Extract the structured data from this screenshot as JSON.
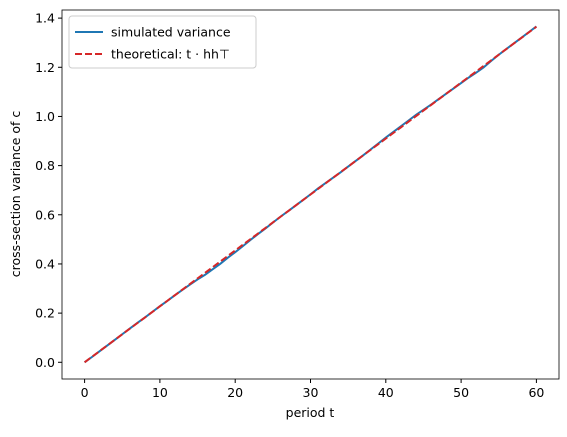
{
  "chart_data": {
    "type": "line",
    "xlabel": "period t",
    "ylabel": "cross-section variance of c",
    "x": [
      0,
      1,
      2,
      3,
      4,
      5,
      6,
      7,
      8,
      9,
      10,
      11,
      12,
      13,
      14,
      15,
      16,
      17,
      18,
      19,
      20,
      21,
      22,
      23,
      24,
      25,
      26,
      27,
      28,
      29,
      30,
      31,
      32,
      33,
      34,
      35,
      36,
      37,
      38,
      39,
      40,
      41,
      42,
      43,
      44,
      45,
      46,
      47,
      48,
      49,
      50,
      51,
      52,
      53,
      54,
      55,
      56,
      57,
      58,
      59,
      60
    ],
    "series": [
      {
        "name": "simulated variance",
        "color": "#1f77b4",
        "dash": false,
        "values": [
          0,
          0.022,
          0.045,
          0.068,
          0.091,
          0.114,
          0.137,
          0.16,
          0.182,
          0.205,
          0.228,
          0.25,
          0.273,
          0.295,
          0.316,
          0.337,
          0.356,
          0.378,
          0.4,
          0.425,
          0.448,
          0.472,
          0.497,
          0.521,
          0.544,
          0.568,
          0.592,
          0.614,
          0.637,
          0.66,
          0.683,
          0.707,
          0.729,
          0.751,
          0.773,
          0.796,
          0.819,
          0.842,
          0.866,
          0.89,
          0.914,
          0.937,
          0.96,
          0.983,
          1.006,
          1.027,
          1.048,
          1.07,
          1.092,
          1.114,
          1.136,
          1.158,
          1.178,
          1.2,
          1.226,
          1.251,
          1.274,
          1.297,
          1.32,
          1.343,
          1.366
        ]
      },
      {
        "name": "theoretical: t · hh⊤",
        "color": "#d62728",
        "dash": true,
        "values": [
          0,
          0.0228,
          0.0455,
          0.0683,
          0.091,
          0.1138,
          0.1365,
          0.1593,
          0.182,
          0.2048,
          0.2275,
          0.2503,
          0.273,
          0.2958,
          0.3185,
          0.3413,
          0.364,
          0.3868,
          0.4095,
          0.4323,
          0.455,
          0.4778,
          0.5005,
          0.5233,
          0.546,
          0.5688,
          0.5915,
          0.6143,
          0.637,
          0.6598,
          0.6825,
          0.7053,
          0.728,
          0.7508,
          0.7735,
          0.7963,
          0.819,
          0.8418,
          0.8645,
          0.8873,
          0.91,
          0.9328,
          0.9555,
          0.9783,
          1.001,
          1.0238,
          1.0465,
          1.0693,
          1.092,
          1.1148,
          1.1375,
          1.1603,
          1.183,
          1.2058,
          1.2285,
          1.2513,
          1.274,
          1.2968,
          1.3195,
          1.3423,
          1.365
        ]
      }
    ],
    "xlim": [
      -3,
      63
    ],
    "ylim": [
      -0.068,
      1.433
    ],
    "xticks": [
      0,
      10,
      20,
      30,
      40,
      50,
      60
    ],
    "yticks": [
      {
        "value": 0,
        "label": "0.0"
      },
      0.2,
      0.4,
      0.6,
      0.8,
      {
        "value": 1,
        "label": "1.0"
      },
      1.2,
      1.4
    ],
    "legend": "upper left",
    "grid": false
  }
}
